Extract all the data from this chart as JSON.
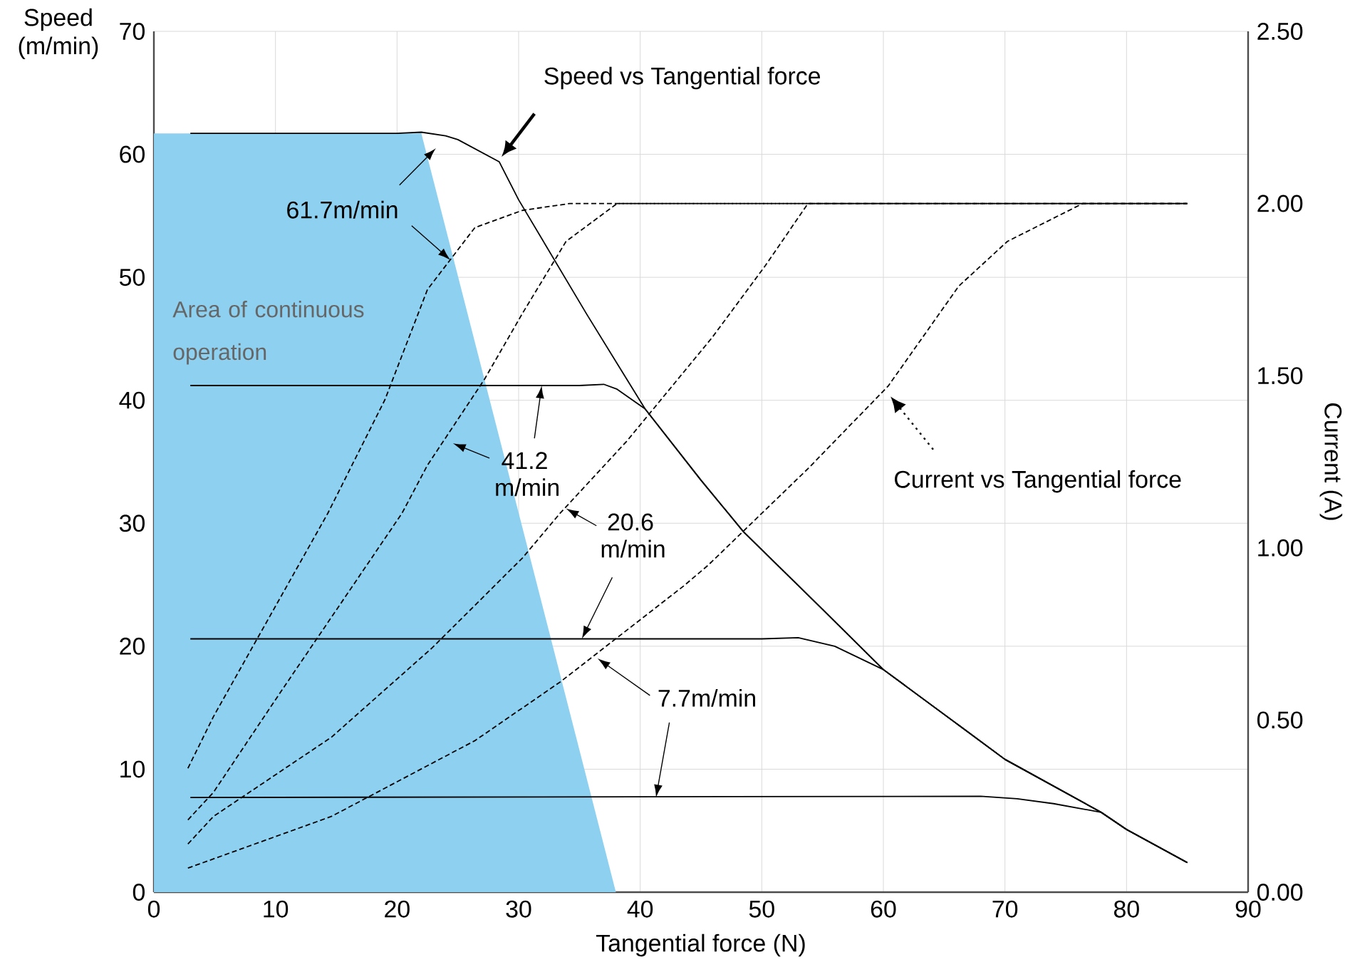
{
  "chart_data": {
    "type": "line",
    "xlabel": "Tangential force (N)",
    "ylabel": "Speed (m/min)",
    "y2label": "Current (A)",
    "xlim": [
      0,
      90
    ],
    "xticks": [
      0,
      10,
      20,
      30,
      40,
      50,
      60,
      70,
      80,
      90
    ],
    "ylim": [
      0,
      70
    ],
    "yticks": [
      0,
      10,
      20,
      30,
      40,
      50,
      60,
      70
    ],
    "y2lim": [
      0,
      2.5
    ],
    "y2ticks": [
      {
        "value": 0,
        "label": "0.00"
      },
      {
        "value": 0.5,
        "label": "0.50"
      },
      {
        "value": 1,
        "label": "1.00"
      },
      {
        "value": 1.5,
        "label": "1.50"
      },
      {
        "value": 2,
        "label": "2.00"
      },
      {
        "value": 2.5,
        "label": "2.50"
      }
    ],
    "grid": true,
    "series": [
      {
        "type": "area",
        "color": "#8dd0f0",
        "x": [
          0,
          22,
          38
        ],
        "values": [
          61.7,
          61.7,
          0
        ]
      },
      {
        "color": "#000000",
        "line_style": "solid",
        "x": [
          3,
          20,
          22,
          24,
          25,
          28.4,
          30,
          35.6,
          40.4,
          45,
          48.5,
          55,
          60,
          65.9,
          70,
          77.9,
          80,
          85
        ],
        "values": [
          61.7,
          61.7,
          61.8,
          61.5,
          61.2,
          59.4,
          56.3,
          47.0,
          39.3,
          33.5,
          29.3,
          23,
          18.1,
          13.8,
          10.8,
          6.5,
          5.1,
          2.4
        ]
      },
      {
        "color": "#000000",
        "line_style": "solid",
        "x": [
          3,
          35,
          37,
          38.1,
          40.4,
          45,
          48.5,
          55,
          60,
          65.9,
          70,
          77.9,
          80,
          85
        ],
        "values": [
          41.2,
          41.2,
          41.3,
          40.9,
          39.3,
          33.5,
          29.3,
          23,
          18.1,
          13.8,
          10.8,
          6.5,
          5.1,
          2.4
        ]
      },
      {
        "color": "#000000",
        "line_style": "solid",
        "x": [
          3,
          50,
          53,
          56,
          60,
          65.9,
          70,
          77.9,
          80,
          85
        ],
        "values": [
          20.6,
          20.6,
          20.7,
          20.0,
          18.1,
          13.8,
          10.8,
          6.5,
          5.1,
          2.4
        ]
      },
      {
        "color": "#000000",
        "line_style": "solid",
        "x": [
          3,
          68,
          71,
          74,
          77.9,
          80,
          85
        ],
        "values": [
          7.7,
          7.8,
          7.6,
          7.2,
          6.5,
          5.1,
          2.4
        ]
      },
      {
        "color": "#000000",
        "line_style": "dashed",
        "axis": "y2",
        "x": [
          2.8,
          4.9,
          8.4,
          14.3,
          19,
          22.5,
          26.4,
          30.3,
          34.2,
          85
        ],
        "values": [
          0.36,
          0.51,
          0.73,
          1.1,
          1.43,
          1.75,
          1.93,
          1.98,
          2.0,
          2.0
        ]
      },
      {
        "color": "#000000",
        "line_style": "dashed",
        "axis": "y2",
        "x": [
          2.8,
          4.9,
          10.4,
          20.4,
          22.5,
          27.2,
          30.3,
          33.9,
          38.1,
          85
        ],
        "values": [
          0.21,
          0.29,
          0.58,
          1.1,
          1.24,
          1.49,
          1.68,
          1.89,
          2.0,
          2.0
        ]
      },
      {
        "color": "#000000",
        "line_style": "dashed",
        "axis": "y2",
        "x": [
          2.8,
          4.9,
          14.6,
          22.9,
          30.3,
          33.4,
          38.9,
          45.9,
          50.3,
          53.8,
          85
        ],
        "values": [
          0.14,
          0.22,
          0.45,
          0.71,
          0.97,
          1.1,
          1.31,
          1.61,
          1.82,
          2.0,
          2.0
        ]
      },
      {
        "color": "#000000",
        "line_style": "dashed",
        "axis": "y2",
        "x": [
          2.8,
          14.6,
          26.4,
          33.4,
          43.6,
          45.6,
          53.8,
          60.4,
          66.2,
          70.2,
          76.4,
          85
        ],
        "values": [
          0.07,
          0.22,
          0.44,
          0.61,
          0.89,
          0.95,
          1.23,
          1.47,
          1.76,
          1.89,
          2.0,
          2.0
        ]
      }
    ],
    "annotations": [
      "Speed vs Tangential force",
      {
        "text": "61.7m/min",
        "x": 24.4,
        "y": 51.4
      },
      {
        "text": "41.2 m/min",
        "x": 31.9,
        "y": 41.2
      },
      {
        "text": "20.6 m/min",
        "x": 35.2,
        "y": 20.6
      },
      {
        "text": "7.7m/min",
        "x": 41.3,
        "y": 7.7
      },
      "Current vs Tangential force",
      "Area of continuous operation"
    ]
  }
}
